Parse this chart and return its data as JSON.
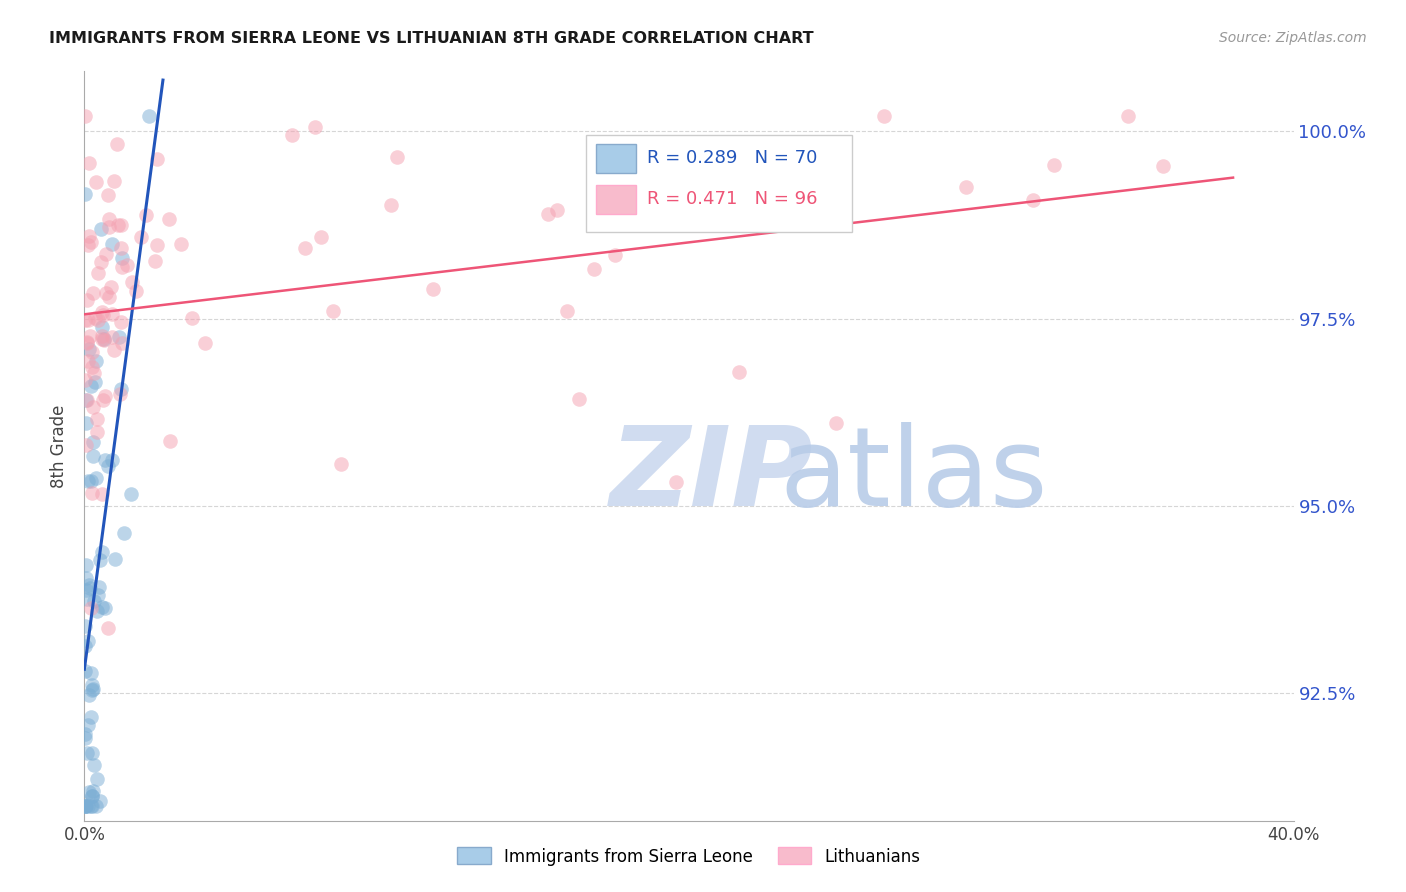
{
  "title": "IMMIGRANTS FROM SIERRA LEONE VS LITHUANIAN 8TH GRADE CORRELATION CHART",
  "source": "Source: ZipAtlas.com",
  "ylabel": "8th Grade",
  "yaxis_labels": [
    "100.0%",
    "97.5%",
    "95.0%",
    "92.5%"
  ],
  "yaxis_values": [
    1.0,
    0.975,
    0.95,
    0.925
  ],
  "xmin": 0.0,
  "xmax": 0.4,
  "ymin": 0.908,
  "ymax": 1.008,
  "blue_label": "Immigrants from Sierra Leone",
  "pink_label": "Lithuanians",
  "blue_R": 0.289,
  "blue_N": 70,
  "pink_R": 0.471,
  "pink_N": 96,
  "blue_color": "#7AADD4",
  "pink_color": "#F4A0B0",
  "trend_blue": "#2255BB",
  "trend_pink": "#EE5577",
  "legend_blue_face": "#A8CCE8",
  "legend_pink_face": "#F8BBCC",
  "watermark_zip_color": "#D0DCF0",
  "watermark_atlas_color": "#B8CCE8"
}
